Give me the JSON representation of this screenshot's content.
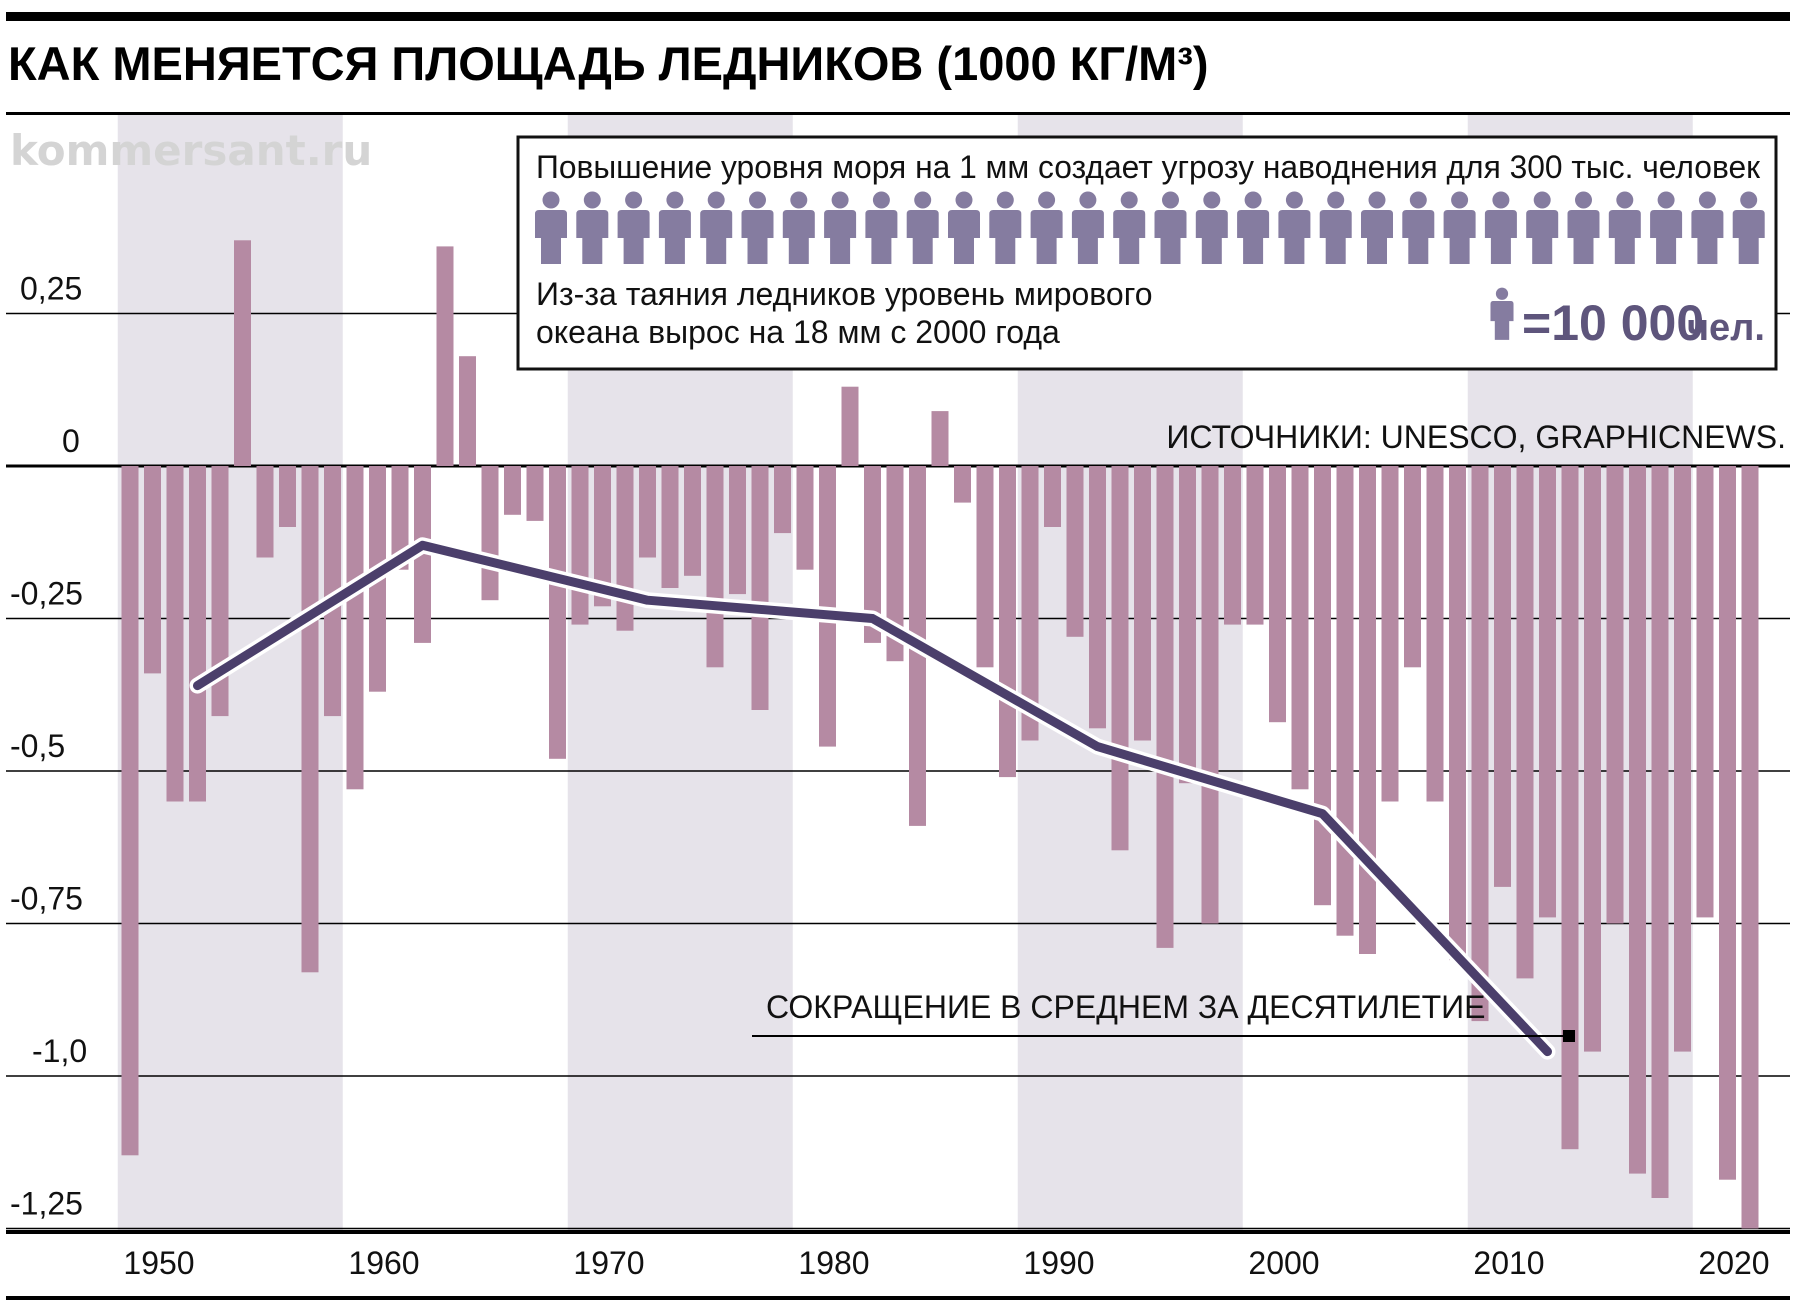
{
  "title": "КАК МЕНЯЕТСЯ ПЛОЩАДЬ ЛЕДНИКОВ (1000 КГ/М³)",
  "watermark": "kommersant.ru",
  "sources": "ИСТОЧНИКИ: UNESCO, GRAPHICNEWS.",
  "avg_label": "СОКРАЩЕНИЕ В СРЕДНЕМ ЗА ДЕСЯТИЛЕТИЕ",
  "infobox": {
    "headline": "Повышение уровня моря на 1 мм создает угрозу наводнения для 300 тыс. человек",
    "body_line1": "Из-за таяния ледников уровень мирового",
    "body_line2": "океана вырос на 18 мм с 2000 года",
    "legend_value": "=10 000",
    "legend_unit": "чел.",
    "people_count": 30,
    "icon": "person-icon"
  },
  "colors": {
    "bar": "#b58aa3",
    "line": "#4b3f6b",
    "band": "#e6e3ea",
    "people": "#857ca0"
  },
  "chart_data": {
    "type": "bar",
    "title": "КАК МЕНЯЕТСЯ ПЛОЩАДЬ ЛЕДНИКОВ (1000 КГ/М³)",
    "xlabel": "",
    "ylabel": "",
    "ylim": [
      -1.25,
      0.25
    ],
    "yticks": [
      {
        "value": 0.25,
        "label": "0,25"
      },
      {
        "value": 0,
        "label": "0"
      },
      {
        "value": -0.25,
        "label": "-0,25"
      },
      {
        "value": -0.5,
        "label": "-0,5"
      },
      {
        "value": -0.75,
        "label": "-0,75"
      },
      {
        "value": -1.0,
        "label": "-1,0"
      },
      {
        "value": -1.25,
        "label": "-1,25"
      }
    ],
    "xticks": [
      "1950",
      "1960",
      "1970",
      "1980",
      "1990",
      "2000",
      "2010",
      "2020"
    ],
    "grid": true,
    "shaded_decades": [
      "1950",
      "1970",
      "1990",
      "2010"
    ],
    "years": [
      1950,
      1951,
      1952,
      1953,
      1954,
      1955,
      1956,
      1957,
      1958,
      1959,
      1960,
      1961,
      1962,
      1963,
      1964,
      1965,
      1966,
      1967,
      1968,
      1969,
      1970,
      1971,
      1972,
      1973,
      1974,
      1975,
      1976,
      1977,
      1978,
      1979,
      1980,
      1981,
      1982,
      1983,
      1984,
      1985,
      1986,
      1987,
      1988,
      1989,
      1990,
      1991,
      1992,
      1993,
      1994,
      1995,
      1996,
      1997,
      1998,
      1999,
      2000,
      2001,
      2002,
      2003,
      2004,
      2005,
      2006,
      2007,
      2008,
      2009,
      2010,
      2011,
      2012,
      2013,
      2014,
      2015,
      2016,
      2017,
      2018,
      2019,
      2020,
      2021,
      2022
    ],
    "values": [
      -1.13,
      -0.34,
      -0.55,
      -0.55,
      -0.41,
      0.37,
      -0.15,
      -0.1,
      -0.83,
      -0.41,
      -0.53,
      -0.37,
      -0.17,
      -0.29,
      0.36,
      0.18,
      -0.22,
      -0.08,
      -0.09,
      -0.48,
      -0.26,
      -0.23,
      -0.27,
      -0.15,
      -0.2,
      -0.18,
      -0.33,
      -0.21,
      -0.4,
      -0.11,
      -0.17,
      -0.46,
      0.13,
      -0.29,
      -0.32,
      -0.59,
      0.09,
      -0.06,
      -0.33,
      -0.51,
      -0.45,
      -0.1,
      -0.28,
      -0.43,
      -0.63,
      -0.45,
      -0.79,
      -0.52,
      -0.75,
      -0.26,
      -0.26,
      -0.42,
      -0.53,
      -0.72,
      -0.77,
      -0.8,
      -0.55,
      -0.33,
      -0.55,
      -0.81,
      -0.91,
      -0.69,
      -0.84,
      -0.74,
      -1.12,
      -0.96,
      -0.75,
      -1.16,
      -1.2,
      -0.96,
      -0.74,
      -1.17,
      -1.25
    ],
    "series": [
      {
        "type": "line",
        "x": [
          1953,
          1963,
          1973,
          1983,
          1993,
          2003,
          2013
        ],
        "values": [
          -0.36,
          -0.13,
          -0.22,
          -0.25,
          -0.46,
          -0.57,
          -0.96
        ]
      }
    ]
  }
}
